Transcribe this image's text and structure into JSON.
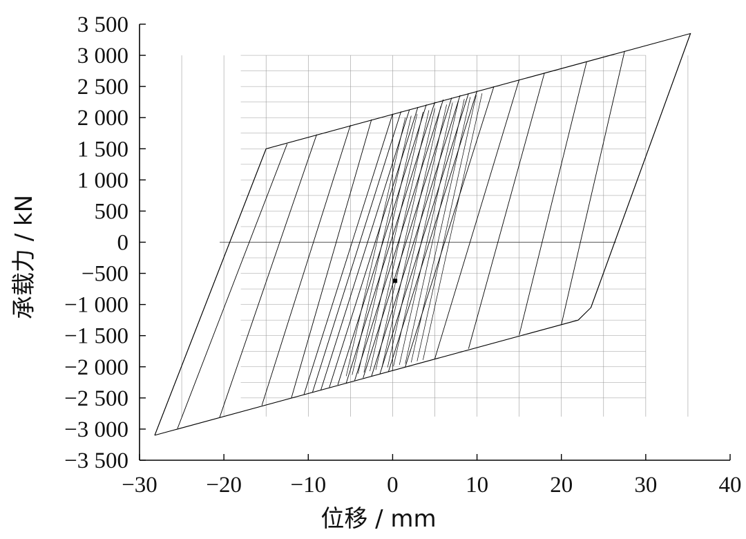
{
  "chart_data": {
    "type": "line",
    "title": "",
    "xlabel": "位移 / mm",
    "ylabel": "承载力 / kN",
    "xlim": [
      -30,
      40
    ],
    "ylim": [
      -3500,
      3500
    ],
    "x_ticks": [
      -30,
      -20,
      -10,
      0,
      10,
      20,
      30,
      40
    ],
    "x_tick_labels": [
      "−30",
      "−20",
      "−10",
      "0",
      "10",
      "20",
      "30",
      "40"
    ],
    "y_ticks": [
      -3500,
      -3000,
      -2500,
      -2000,
      -1500,
      -1000,
      -500,
      0,
      500,
      1000,
      1500,
      2000,
      2500,
      3000,
      3500
    ],
    "y_tick_labels": [
      "−3 500",
      "−3 000",
      "−2 500",
      "−2 000",
      "−1 500",
      "−1 000",
      "−500",
      "0",
      "500",
      "1 000",
      "1 500",
      "2 000",
      "2 500",
      "3 000",
      "3 500"
    ],
    "grid": false,
    "colors": {
      "line": "#000000",
      "hysteresis_grid": "#9a9a9a",
      "axis": "#000000"
    },
    "series": [
      {
        "values": [
          [
            -28.2,
            -3100
          ],
          [
            -15,
            1500
          ],
          [
            35.3,
            3350
          ],
          [
            23.5,
            -1050
          ],
          [
            22,
            -1250
          ],
          [
            -28.2,
            -3100
          ]
        ]
      }
    ],
    "unloading_branches": [
      {
        "top": [
          -15,
          1500
        ],
        "bottom": [
          -28.2,
          -3100
        ]
      },
      {
        "top": [
          -12.5,
          1580
        ],
        "bottom": [
          -25.5,
          -2990
        ]
      },
      {
        "top": [
          -9,
          1730
        ],
        "bottom": [
          -20.5,
          -2810
        ]
      },
      {
        "top": [
          -5,
          1880
        ],
        "bottom": [
          -15.5,
          -2620
        ]
      },
      {
        "top": [
          -2.5,
          1970
        ],
        "bottom": [
          -12,
          -2500
        ]
      },
      {
        "top": [
          0,
          2060
        ],
        "bottom": [
          -10.5,
          -2440
        ]
      },
      {
        "top": [
          1,
          2100
        ],
        "bottom": [
          -9.5,
          -2410
        ]
      },
      {
        "top": [
          2,
          2130
        ],
        "bottom": [
          -8.5,
          -2370
        ]
      },
      {
        "top": [
          3,
          2170
        ],
        "bottom": [
          -7.5,
          -2330
        ]
      },
      {
        "top": [
          4,
          2210
        ],
        "bottom": [
          -6.5,
          -2290
        ]
      },
      {
        "top": [
          5,
          2250
        ],
        "bottom": [
          -5.5,
          -2260
        ]
      },
      {
        "top": [
          6,
          2290
        ],
        "bottom": [
          -4.5,
          -2220
        ]
      },
      {
        "top": [
          7,
          2320
        ],
        "bottom": [
          -3.5,
          -2180
        ]
      },
      {
        "top": [
          8,
          2360
        ],
        "bottom": [
          -2.5,
          -2150
        ]
      },
      {
        "top": [
          9,
          2390
        ],
        "bottom": [
          -1.5,
          -2110
        ]
      },
      {
        "top": [
          10,
          2430
        ],
        "bottom": [
          -0.5,
          -2080
        ]
      },
      {
        "top": [
          12,
          2500
        ],
        "bottom": [
          1.5,
          -2000
        ]
      },
      {
        "top": [
          15,
          2610
        ],
        "bottom": [
          5,
          -1870
        ]
      },
      {
        "top": [
          18,
          2720
        ],
        "bottom": [
          9,
          -1710
        ]
      },
      {
        "top": [
          23,
          2900
        ],
        "bottom": [
          15,
          -1490
        ]
      },
      {
        "top": [
          27.5,
          3070
        ],
        "bottom": [
          20,
          -1320
        ]
      },
      {
        "top": [
          35.3,
          3350
        ],
        "bottom": [
          23.5,
          -1050
        ]
      }
    ],
    "annotations": [
      {
        "type": "point",
        "x": 0.3,
        "y": -620
      }
    ]
  }
}
